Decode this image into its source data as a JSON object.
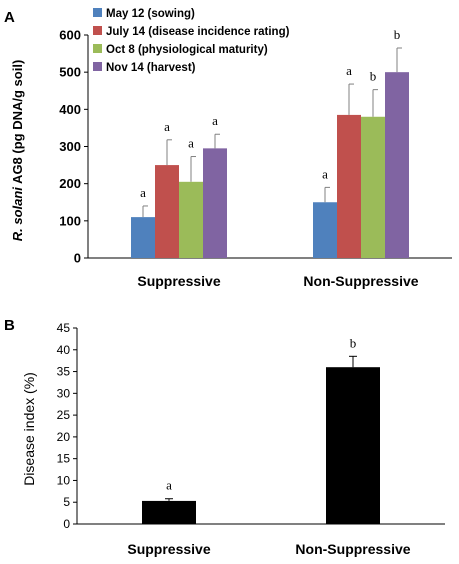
{
  "chart_data": [
    {
      "panel": "A",
      "type": "bar",
      "ylabel_italic": "R. solani",
      "ylabel_rest": " AG8 (pg DNA/g soil)",
      "ylim": [
        0,
        600
      ],
      "yticks": [
        0,
        100,
        200,
        300,
        400,
        500,
        600
      ],
      "categories": [
        "Suppressive",
        "Non-Suppressive"
      ],
      "series": [
        {
          "name": "May 12 (sowing)",
          "color": "#4f81bd",
          "values": [
            110,
            150
          ],
          "errors": [
            30,
            40
          ],
          "letters": [
            "a",
            "a"
          ]
        },
        {
          "name": "July 14 (disease incidence rating)",
          "color": "#c0504d",
          "values": [
            250,
            385
          ],
          "errors": [
            68,
            83
          ],
          "letters": [
            "a",
            "a"
          ]
        },
        {
          "name": "Oct 8 (physiological maturity)",
          "color": "#9bbb59",
          "values": [
            205,
            380
          ],
          "errors": [
            68,
            73
          ],
          "letters": [
            "a",
            "b"
          ]
        },
        {
          "name": "Nov 14 (harvest)",
          "color": "#8064a2",
          "values": [
            295,
            500
          ],
          "errors": [
            38,
            65
          ],
          "letters": [
            "a",
            "b"
          ]
        }
      ],
      "legend_position": "top-left"
    },
    {
      "panel": "B",
      "type": "bar",
      "ylabel": "Disease index (%)",
      "ylim": [
        0,
        45
      ],
      "yticks": [
        0,
        5,
        10,
        15,
        20,
        25,
        30,
        35,
        40,
        45
      ],
      "categories": [
        "Suppressive",
        "Non-Suppressive"
      ],
      "values": [
        5.3,
        36
      ],
      "errors": [
        0.5,
        2.5
      ],
      "letters": [
        "a",
        "b"
      ],
      "color": "#000000"
    }
  ]
}
